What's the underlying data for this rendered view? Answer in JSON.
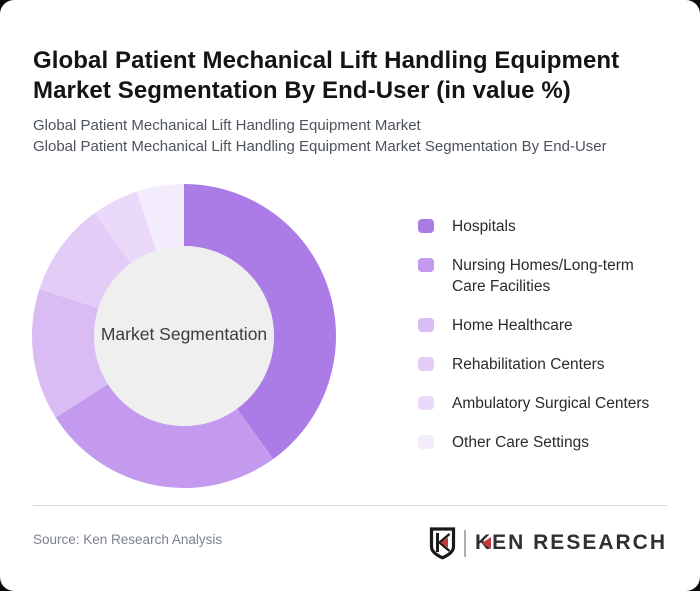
{
  "page": {
    "background": "#0a0a0a",
    "card_background": "#ffffff"
  },
  "header": {
    "title": "Global Patient Mechanical Lift Handling Equipment Market Segmentation By End-User (in value %)",
    "subtitle1": "Global Patient Mechanical Lift Handling Equipment Market",
    "subtitle2": "Global Patient Mechanical Lift Handling Equipment Market Segmentation By End-User"
  },
  "chart_data": {
    "type": "pie",
    "style": "donut",
    "title": "Global Patient Mechanical Lift Handling Equipment Market Segmentation By End-User (in value %)",
    "unit": "value %",
    "center_label": "Market Segmentation",
    "center_bg": "#efefef",
    "start_angle_deg": 0,
    "direction": "clockwise",
    "legend_position": "right",
    "categories": [
      "Hospitals",
      "Nursing Homes/Long-term Care Facilities",
      "Home Healthcare",
      "Rehabilitation Centers",
      "Ambulatory Surgical Centers",
      "Other Care Settings"
    ],
    "values": [
      40,
      26,
      14,
      10,
      5,
      5
    ],
    "colors": [
      "#ab7ce6",
      "#c49aee",
      "#d8bcf3",
      "#e3cdf6",
      "#ead9f9",
      "#f3ecfc"
    ],
    "legend": [
      {
        "label": "Hospitals",
        "color": "#ab7ce6"
      },
      {
        "label": "Nursing Homes/Long-term\nCare Facilities",
        "color": "#c49aee"
      },
      {
        "label": "Home Healthcare",
        "color": "#d8bcf3"
      },
      {
        "label": "Rehabilitation Centers",
        "color": "#e3cdf6"
      },
      {
        "label": "Ambulatory Surgical Centers",
        "color": "#ead9f9"
      },
      {
        "label": "Other Care Settings",
        "color": "#f3ecfc"
      }
    ]
  },
  "footer": {
    "source": "Source: Ken Research Analysis",
    "logo_text": "KEN RESEARCH",
    "logo_accent_color": "#bf3a3a"
  }
}
